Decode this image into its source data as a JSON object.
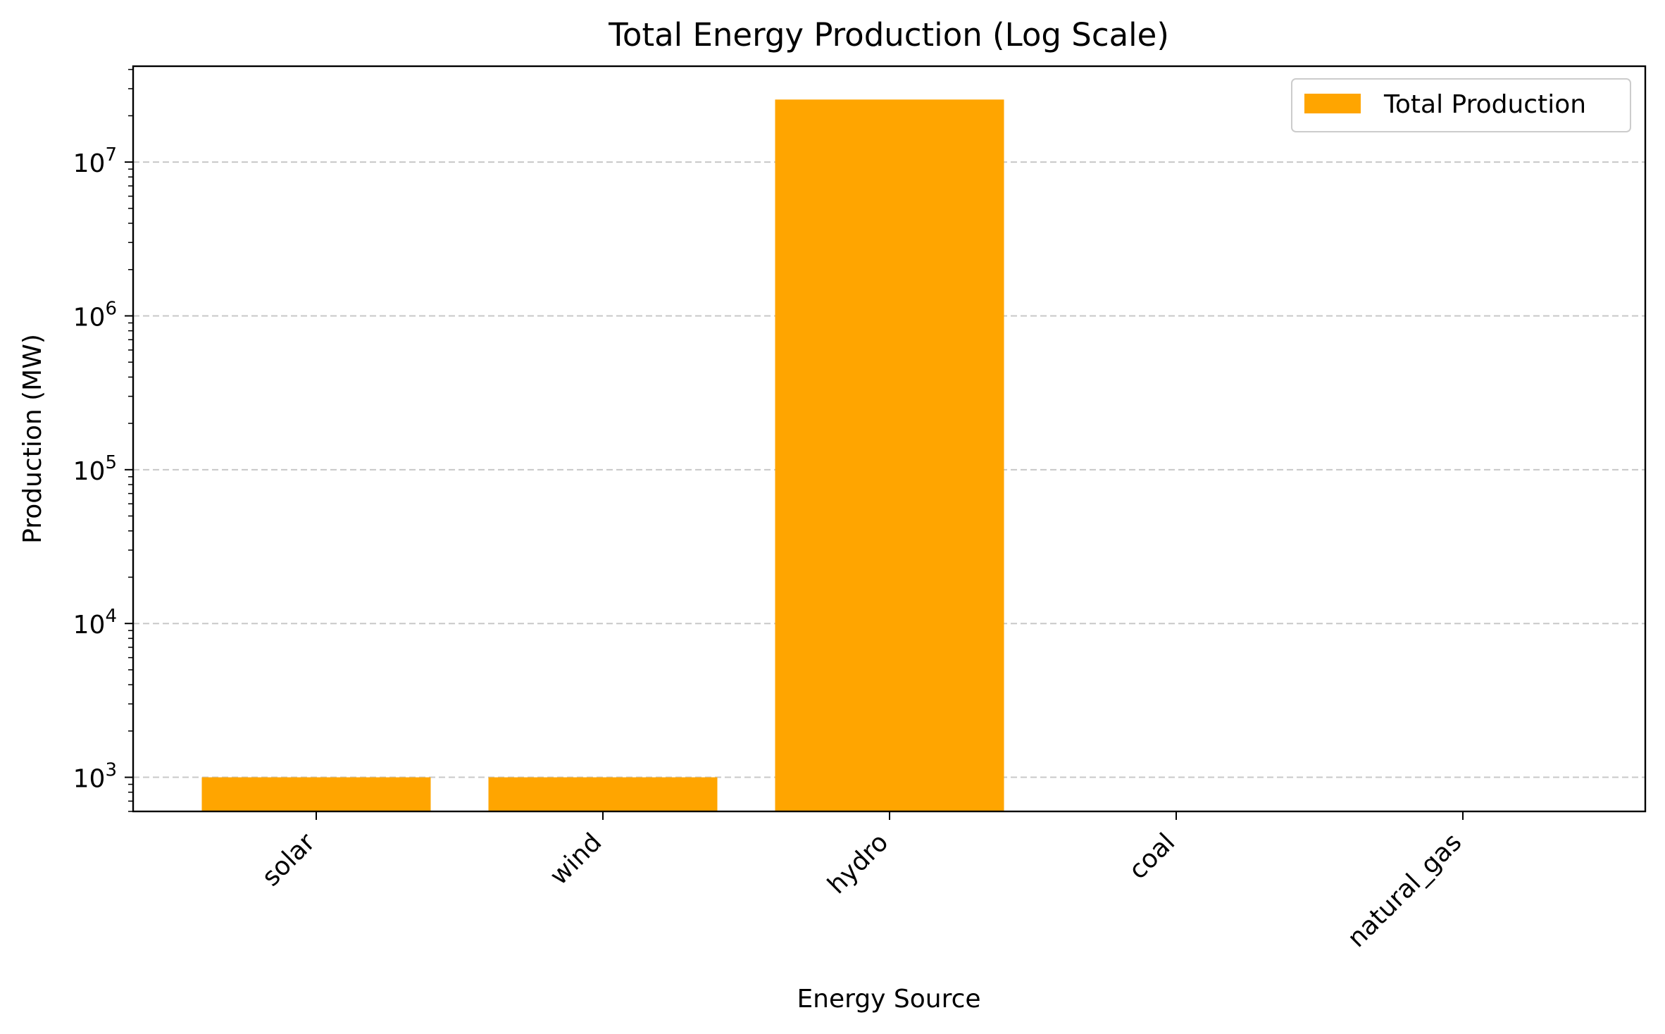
{
  "chart_data": {
    "type": "bar",
    "title": "Total Energy Production (Log Scale)",
    "xlabel": "Energy Source",
    "ylabel": "Production (MW)",
    "categories": [
      "solar",
      "wind",
      "hydro",
      "coal",
      "natural_gas"
    ],
    "series": [
      {
        "name": "Total Production",
        "values": [
          1000,
          1000,
          25500000,
          null,
          null
        ],
        "color": "#ffa500"
      }
    ],
    "yscale": "log",
    "ylim": [
      600,
      42000000
    ],
    "yticks": [
      {
        "value": 1000,
        "base": "10",
        "exp": "3"
      },
      {
        "value": 10000,
        "base": "10",
        "exp": "4"
      },
      {
        "value": 100000,
        "base": "10",
        "exp": "5"
      },
      {
        "value": 1000000,
        "base": "10",
        "exp": "6"
      },
      {
        "value": 10000000,
        "base": "10",
        "exp": "7"
      }
    ],
    "grid": {
      "axis": "y",
      "style": "dashed",
      "color": "#c8c8c8"
    },
    "legend": {
      "position": "top-right"
    }
  }
}
